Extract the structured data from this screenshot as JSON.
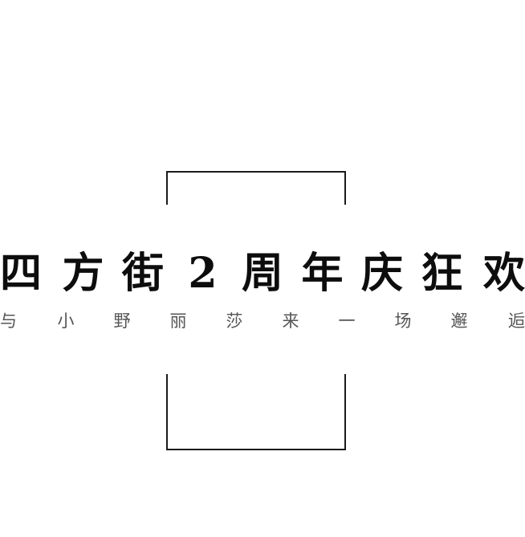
{
  "title": {
    "chars": [
      "四",
      "方",
      "街",
      "2",
      "周",
      "年",
      "庆",
      "狂",
      "欢"
    ]
  },
  "subtitle": {
    "chars": [
      "与",
      "小",
      "野",
      "丽",
      "莎",
      "来",
      "一",
      "场",
      "邂",
      "逅"
    ]
  },
  "colors": {
    "background": "#ffffff",
    "title": "#0d0d0d",
    "subtitle": "#555555",
    "frame": "#1a1a1a"
  }
}
